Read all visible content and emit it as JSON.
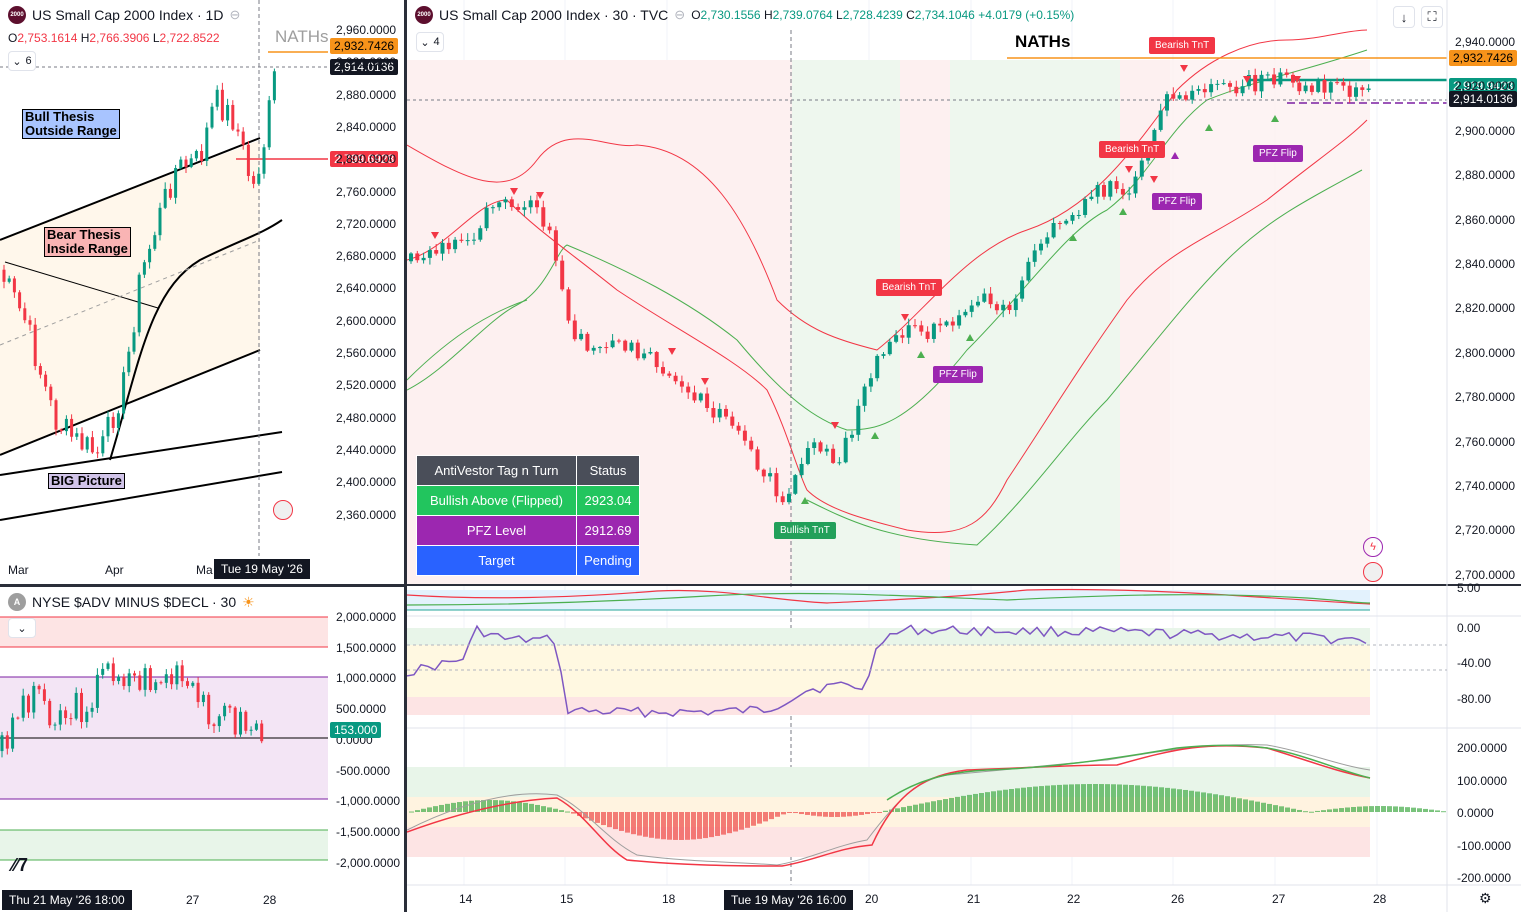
{
  "left_top": {
    "title": "US Small Cap 2000 Index · 1D",
    "ohlc": {
      "o": "2,753.1614",
      "h": "2,766.3906",
      "l": "2,722.8522",
      "c": ""
    },
    "collapse_count": "6",
    "nath_label": "NATHs",
    "annotations": {
      "bull": "Bull Thesis\nOutside Range",
      "bear": "Bear Thesis\nInside Range",
      "big": "BIG Picture"
    },
    "price_tags": {
      "orange": "2,932.7426",
      "dark": "2,914.0136",
      "red": "2,799.6928"
    },
    "y_axis": [
      "2,960.0000",
      "2,920.0000",
      "2,880.0000",
      "2,840.0000",
      "2,800.0000",
      "2,760.0000",
      "2,720.0000",
      "2,680.0000",
      "2,640.0000",
      "2,600.0000",
      "2,560.0000",
      "2,520.0000",
      "2,480.0000",
      "2,440.0000",
      "2,400.0000",
      "2,360.0000"
    ],
    "x_axis": [
      "Mar",
      "Apr",
      "Ma"
    ],
    "crosshair_time": "Tue 19 May '26"
  },
  "left_bottom": {
    "title": "NYSE $ADV MINUS $DECL · 30",
    "y_axis": [
      "2,000.0000",
      "1,500.0000",
      "1,000.0000",
      "500.0000",
      "0.0000",
      "-500.0000",
      "-1,000.0000",
      "-1,500.0000",
      "-2,000.0000"
    ],
    "last_value": "153.000",
    "x_axis": [
      "27",
      "28"
    ],
    "crosshair_time": "Thu 21 May '26  18:00"
  },
  "main": {
    "title": "US Small Cap 2000 Index · 30 · TVC",
    "ohlc": {
      "o": "2,730.1556",
      "h": "2,739.0764",
      "l": "2,728.4239",
      "c": "2,734.1046",
      "chg": "+4.0179 (+0.15%)"
    },
    "collapse_count": "4",
    "nath_label": "NATHs",
    "price_tags": {
      "orange": "2,932.7426",
      "green": "2,919.9423",
      "dark": "2,914.0136"
    },
    "y_axis": [
      "2,940.0000",
      "2,920.0000",
      "2,900.0000",
      "2,880.0000",
      "2,860.0000",
      "2,840.0000",
      "2,820.0000",
      "2,800.0000",
      "2,780.0000",
      "2,760.0000",
      "2,740.0000",
      "2,720.0000",
      "2,700.0000"
    ],
    "signals": [
      {
        "text": "Bearish TnT",
        "kind": "bear"
      },
      {
        "text": "Bearish TnT",
        "kind": "bear"
      },
      {
        "text": "Bearish TnT",
        "kind": "bear"
      },
      {
        "text": "PFZ Flip",
        "kind": "pfz"
      },
      {
        "text": "PFZ Flip",
        "kind": "pfz"
      },
      {
        "text": "PFZ Flip",
        "kind": "pfz"
      },
      {
        "text": "Bullish TnT",
        "kind": "bull"
      }
    ],
    "status_table": {
      "header": [
        "AntiVestor Tag n Turn",
        "Status"
      ],
      "rows": [
        {
          "label": "Bullish Above (Flipped)",
          "value": "2923.04",
          "color": "#22c55e"
        },
        {
          "label": "PFZ Level",
          "value": "2912.69",
          "color": "#9c27b0"
        },
        {
          "label": "Target",
          "value": "Pending",
          "color": "#2962ff"
        }
      ]
    }
  },
  "osc1": {
    "y_axis": [
      "5.00"
    ]
  },
  "osc2": {
    "y_axis": [
      "0.00",
      "-40.00",
      "-80.00"
    ]
  },
  "osc3": {
    "y_axis": [
      "200.0000",
      "100.0000",
      "0.0000",
      "-100.0000",
      "-200.0000"
    ]
  },
  "x_axis_main": [
    "14",
    "15",
    "18",
    "20",
    "21",
    "22",
    "26",
    "27",
    "28"
  ],
  "crosshair_time_main": "Tue 19 May '26  16:00",
  "colors": {
    "up": "#089981",
    "down": "#f23645",
    "bull_zone": "#e8f5e9",
    "bear_zone": "#fdecec",
    "orange": "#f7931a",
    "purple": "#7e57c2"
  }
}
